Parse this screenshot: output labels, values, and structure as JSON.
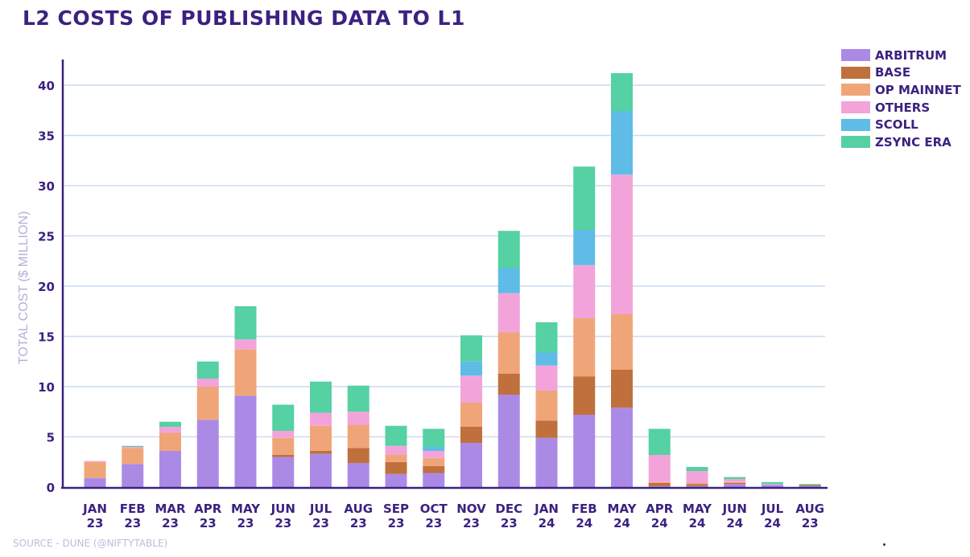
{
  "chart_data": {
    "type": "bar",
    "stacked": true,
    "title": "L2 COSTS OF PUBLISHING DATA TO L1",
    "xlabel": "",
    "ylabel": "TOTAL COST ($ MILLION)",
    "ylim": [
      0,
      42
    ],
    "yticks": [
      0,
      5,
      10,
      15,
      20,
      25,
      30,
      35,
      40
    ],
    "grid": true,
    "legend_position": "right",
    "source": "SOURCE - DUNE (@NIFTYTABLE)",
    "categories": [
      {
        "month": "JAN",
        "year": "23"
      },
      {
        "month": "FEB",
        "year": "23"
      },
      {
        "month": "MAR",
        "year": "23"
      },
      {
        "month": "APR",
        "year": "23"
      },
      {
        "month": "MAY",
        "year": "23"
      },
      {
        "month": "JUN",
        "year": "23"
      },
      {
        "month": "JUL",
        "year": "23"
      },
      {
        "month": "AUG",
        "year": "23"
      },
      {
        "month": "SEP",
        "year": "23"
      },
      {
        "month": "OCT",
        "year": "23"
      },
      {
        "month": "NOV",
        "year": "23"
      },
      {
        "month": "DEC",
        "year": "23"
      },
      {
        "month": "JAN",
        "year": "24"
      },
      {
        "month": "FEB",
        "year": "24"
      },
      {
        "month": "MAY",
        "year": "24"
      },
      {
        "month": "APR",
        "year": "24"
      },
      {
        "month": "MAY",
        "year": "24"
      },
      {
        "month": "JUN",
        "year": "24"
      },
      {
        "month": "JUL",
        "year": "24"
      },
      {
        "month": "AUG",
        "year": "23"
      }
    ],
    "series": [
      {
        "name": "ARBITRUM",
        "color": "#ab8ae6",
        "values": [
          0.9,
          2.3,
          3.6,
          6.7,
          9.1,
          3.0,
          3.3,
          2.4,
          1.3,
          1.4,
          4.4,
          9.2,
          4.9,
          7.2,
          7.9,
          0.1,
          0.1,
          0.3,
          0.2,
          0.1
        ]
      },
      {
        "name": "BASE",
        "color": "#c0703c",
        "values": [
          0,
          0,
          0,
          0,
          0,
          0.2,
          0.3,
          1.5,
          1.2,
          0.7,
          1.6,
          2.1,
          1.7,
          3.8,
          3.8,
          0.3,
          0.2,
          0.1,
          0,
          0.1
        ]
      },
      {
        "name": "OP MAINNET",
        "color": "#f0a579",
        "values": [
          1.6,
          1.6,
          1.8,
          3.3,
          4.6,
          1.7,
          2.5,
          2.3,
          0.7,
          0.8,
          2.4,
          4.1,
          3.0,
          5.8,
          5.5,
          0.1,
          0.1,
          0.1,
          0,
          0
        ]
      },
      {
        "name": "OTHERS",
        "color": "#f2a4da",
        "values": [
          0.1,
          0.1,
          0.6,
          0.8,
          1.0,
          0.7,
          1.3,
          1.3,
          0.9,
          0.7,
          2.7,
          3.9,
          2.5,
          5.3,
          13.9,
          2.7,
          1.2,
          0.3,
          0.1,
          0
        ]
      },
      {
        "name": "SCOLL",
        "color": "#5ebce6",
        "values": [
          0,
          0,
          0,
          0,
          0,
          0,
          0,
          0,
          0,
          0.4,
          1.4,
          2.5,
          1.3,
          3.5,
          6.3,
          0,
          0,
          0,
          0,
          0
        ]
      },
      {
        "name": "ZSYNC ERA",
        "color": "#55d1a3",
        "values": [
          0,
          0.1,
          0.5,
          1.7,
          3.3,
          2.6,
          3.1,
          2.6,
          2.0,
          1.8,
          2.6,
          3.7,
          3.0,
          6.3,
          3.8,
          2.6,
          0.4,
          0.2,
          0.2,
          0.1
        ]
      }
    ]
  }
}
